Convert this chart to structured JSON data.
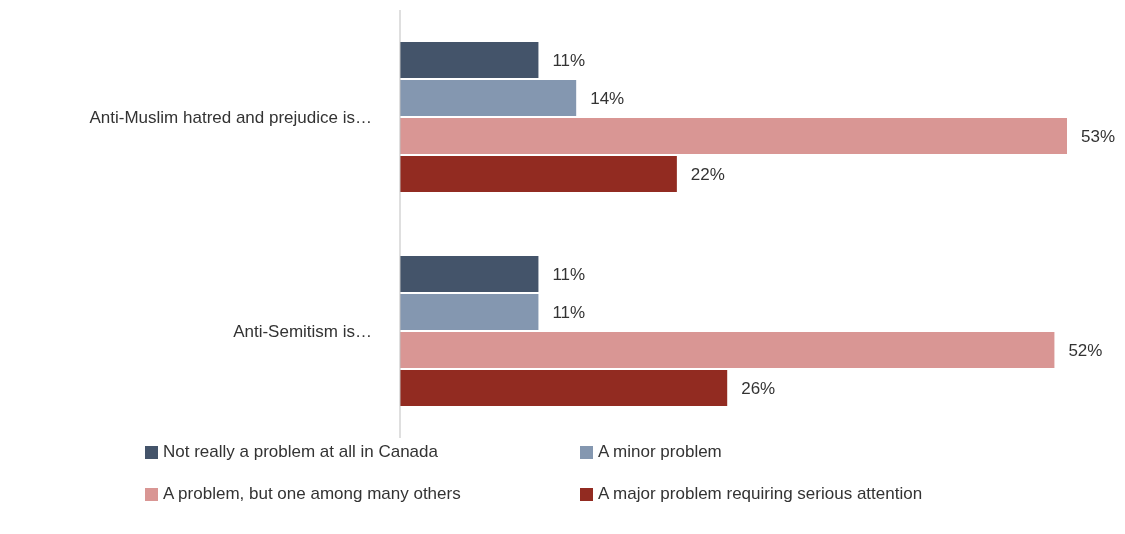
{
  "chart_data": {
    "type": "bar",
    "orientation": "horizontal",
    "categories": [
      "Anti-Muslim hatred and prejudice is…",
      "Anti-Semitism is…"
    ],
    "series": [
      {
        "name": "Not really a problem at all in Canada",
        "color": "#44546a",
        "values": [
          11,
          11
        ],
        "value_labels": [
          "11%",
          "11%"
        ]
      },
      {
        "name": "A minor problem",
        "color": "#8497b0",
        "values": [
          14,
          11
        ],
        "value_labels": [
          "14%",
          "11%"
        ]
      },
      {
        "name": "A problem, but one among many others",
        "color": "#d99694",
        "values": [
          53,
          52
        ],
        "value_labels": [
          "53%",
          "52%"
        ]
      },
      {
        "name": "A major problem requiring serious attention",
        "color": "#922b21",
        "values": [
          22,
          26
        ],
        "value_labels": [
          "22%",
          "26%"
        ]
      }
    ],
    "legend": "bottom",
    "grid": false
  }
}
